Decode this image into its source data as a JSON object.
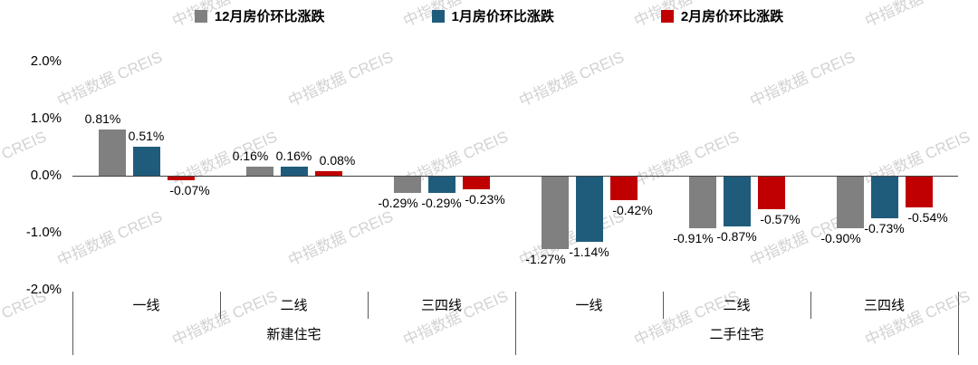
{
  "watermark_text": "中指数据 CREIS",
  "legend": {
    "items": [
      {
        "label": "12月房价环比涨跌",
        "color": "#808080"
      },
      {
        "label": "1月房价环比涨跌",
        "color": "#1F5C7C"
      },
      {
        "label": "2月房价环比涨跌",
        "color": "#C00000"
      }
    ]
  },
  "chart_data": {
    "type": "bar",
    "title": "",
    "xlabel": "",
    "ylabel": "",
    "ylim": [
      -2.0,
      2.0
    ],
    "grid": false,
    "legend_position": "top",
    "y_ticks": [
      {
        "label": "2.0%",
        "value": 2.0
      },
      {
        "label": "1.0%",
        "value": 1.0
      },
      {
        "label": "0.0%",
        "value": 0.0
      },
      {
        "label": "-1.0%",
        "value": -1.0
      },
      {
        "label": "-2.0%",
        "value": -2.0
      }
    ],
    "categories": [
      "一线",
      "二线",
      "三四线",
      "一线",
      "二线",
      "三四线"
    ],
    "category_groups": [
      {
        "label": "新建住宅",
        "start": 0,
        "end": 2
      },
      {
        "label": "二手住宅",
        "start": 3,
        "end": 5
      }
    ],
    "series": [
      {
        "name": "12月房价环比涨跌",
        "color": "#808080",
        "values": [
          0.81,
          0.16,
          -0.29,
          -1.27,
          -0.91,
          -0.9
        ],
        "labels": [
          "0.81%",
          "0.16%",
          "-0.29%",
          "-1.27%",
          "-0.91%",
          "-0.90%"
        ]
      },
      {
        "name": "1月房价环比涨跌",
        "color": "#1F5C7C",
        "values": [
          0.51,
          0.16,
          -0.29,
          -1.14,
          -0.87,
          -0.73
        ],
        "labels": [
          "0.51%",
          "0.16%",
          "-0.29%",
          "-1.14%",
          "-0.87%",
          "-0.73%"
        ]
      },
      {
        "name": "2月房价环比涨跌",
        "color": "#C00000",
        "values": [
          -0.07,
          0.08,
          -0.23,
          -0.42,
          -0.57,
          -0.54
        ],
        "labels": [
          "-0.07%",
          "0.08%",
          "-0.23%",
          "-0.42%",
          "-0.57%",
          "-0.54%"
        ]
      }
    ]
  }
}
